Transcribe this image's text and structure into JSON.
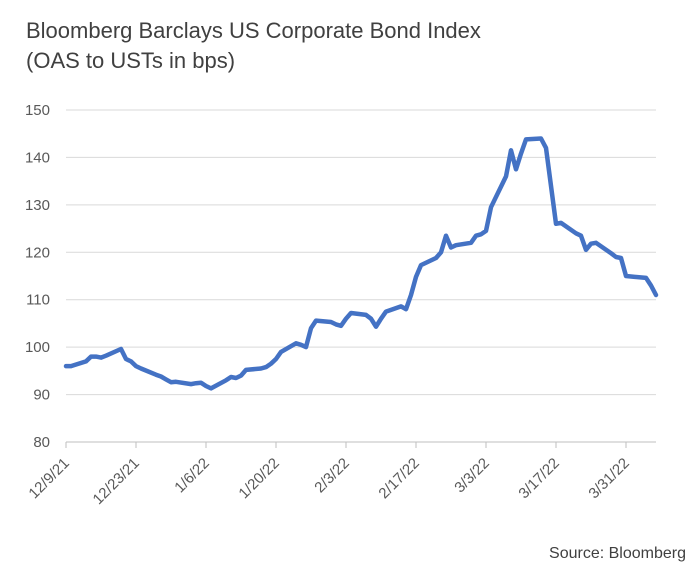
{
  "title_line1": "Bloomberg Barclays US Corporate Bond Index",
  "title_line2": "(OAS to USTs in bps)",
  "source": "Source: Bloomberg",
  "chart_data": {
    "type": "line",
    "title": "Bloomberg Barclays US Corporate Bond Index (OAS to USTs in bps)",
    "xlabel": "",
    "ylabel": "",
    "xlim": [
      "2021-12-09",
      "2022-04-06"
    ],
    "ylim": [
      80,
      150
    ],
    "yticks": [
      80,
      90,
      100,
      110,
      120,
      130,
      140,
      150
    ],
    "xticks": [
      "2021-12-09",
      "2021-12-23",
      "2022-01-06",
      "2022-01-20",
      "2022-02-03",
      "2022-02-17",
      "2022-03-03",
      "2022-03-17",
      "2022-03-31"
    ],
    "xtick_labels": [
      "12/9/21",
      "12/23/21",
      "1/6/22",
      "1/20/22",
      "2/3/22",
      "2/17/22",
      "3/3/22",
      "3/17/22",
      "3/31/22"
    ],
    "grid": "horizontal",
    "line_color": "#4472C4",
    "series": [
      {
        "x": [
          "2021-12-09",
          "2021-12-10",
          "2021-12-13",
          "2021-12-14",
          "2021-12-15",
          "2021-12-16",
          "2021-12-17",
          "2021-12-20",
          "2021-12-21",
          "2021-12-22",
          "2021-12-23",
          "2021-12-24",
          "2021-12-27",
          "2021-12-28",
          "2021-12-29",
          "2021-12-30",
          "2021-12-31",
          "2022-01-03",
          "2022-01-04",
          "2022-01-05",
          "2022-01-06",
          "2022-01-07",
          "2022-01-10",
          "2022-01-11",
          "2022-01-12",
          "2022-01-13",
          "2022-01-14",
          "2022-01-17",
          "2022-01-18",
          "2022-01-19",
          "2022-01-20",
          "2022-01-21",
          "2022-01-24",
          "2022-01-25",
          "2022-01-26",
          "2022-01-27",
          "2022-01-28",
          "2022-01-31",
          "2022-02-01",
          "2022-02-02",
          "2022-02-03",
          "2022-02-04",
          "2022-02-07",
          "2022-02-08",
          "2022-02-09",
          "2022-02-10",
          "2022-02-11",
          "2022-02-14",
          "2022-02-15",
          "2022-02-16",
          "2022-02-17",
          "2022-02-18",
          "2022-02-21",
          "2022-02-22",
          "2022-02-23",
          "2022-02-24",
          "2022-02-25",
          "2022-02-28",
          "2022-03-01",
          "2022-03-02",
          "2022-03-03",
          "2022-03-04",
          "2022-03-07",
          "2022-03-08",
          "2022-03-09",
          "2022-03-10",
          "2022-03-11",
          "2022-03-14",
          "2022-03-15",
          "2022-03-16",
          "2022-03-17",
          "2022-03-18",
          "2022-03-21",
          "2022-03-22",
          "2022-03-23",
          "2022-03-24",
          "2022-03-25",
          "2022-03-28",
          "2022-03-29",
          "2022-03-30",
          "2022-03-31",
          "2022-04-01",
          "2022-04-04",
          "2022-04-05",
          "2022-04-06"
        ],
        "y": [
          96,
          96,
          97,
          98,
          98,
          97.8,
          98.2,
          99.6,
          97.5,
          97,
          96,
          95.5,
          94.2,
          93.8,
          93.2,
          92.6,
          92.7,
          92.2,
          92.4,
          92.5,
          91.8,
          91.3,
          93,
          93.7,
          93.5,
          94,
          95.2,
          95.5,
          95.8,
          96.5,
          97.5,
          99,
          100.8,
          100.5,
          100,
          104,
          105.6,
          105.3,
          104.8,
          104.5,
          106,
          107.2,
          106.8,
          106,
          104.3,
          106,
          107.5,
          108.6,
          108,
          111,
          114.8,
          117.3,
          118.8,
          120,
          123.5,
          121,
          121.5,
          122,
          123.5,
          123.8,
          124.5,
          129.5,
          136,
          141.5,
          137.5,
          140.8,
          143.8,
          144,
          142,
          134,
          126,
          126.2,
          124,
          123.5,
          120.5,
          121.8,
          122,
          119.8,
          119,
          118.8,
          115,
          114.9,
          114.6,
          113,
          111
        ]
      }
    ]
  }
}
